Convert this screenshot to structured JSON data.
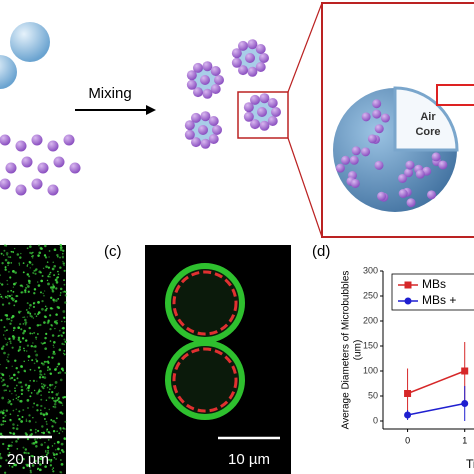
{
  "schematic": {
    "arrow_label": "Mixing",
    "core_label": [
      "Air",
      "Core"
    ]
  },
  "panel_b": {
    "scale_bar": "20 µm"
  },
  "panel_c": {
    "label": "(c)",
    "scale_bar": "10 µm"
  },
  "chart_data": {
    "type": "line",
    "panel_label": "(d)",
    "y_label": "Average Diameters of Microbubbles",
    "y_unit": "(um)",
    "x_label": "Tim",
    "x": [
      0,
      1
    ],
    "xlim": [
      -0.43,
      1.25
    ],
    "xticks": [
      0,
      1
    ],
    "ylim": [
      -16,
      300
    ],
    "yticks": [
      0,
      50,
      100,
      150,
      200,
      250,
      300
    ],
    "series": [
      {
        "name": "MBs",
        "color": "#d62728",
        "marker": "square",
        "values": [
          55,
          100
        ],
        "errors": [
          50,
          58
        ]
      },
      {
        "name": "MBs +",
        "color": "#1f1fd0",
        "marker": "circle",
        "values": [
          12,
          35
        ],
        "errors": [
          10,
          35
        ]
      }
    ]
  }
}
